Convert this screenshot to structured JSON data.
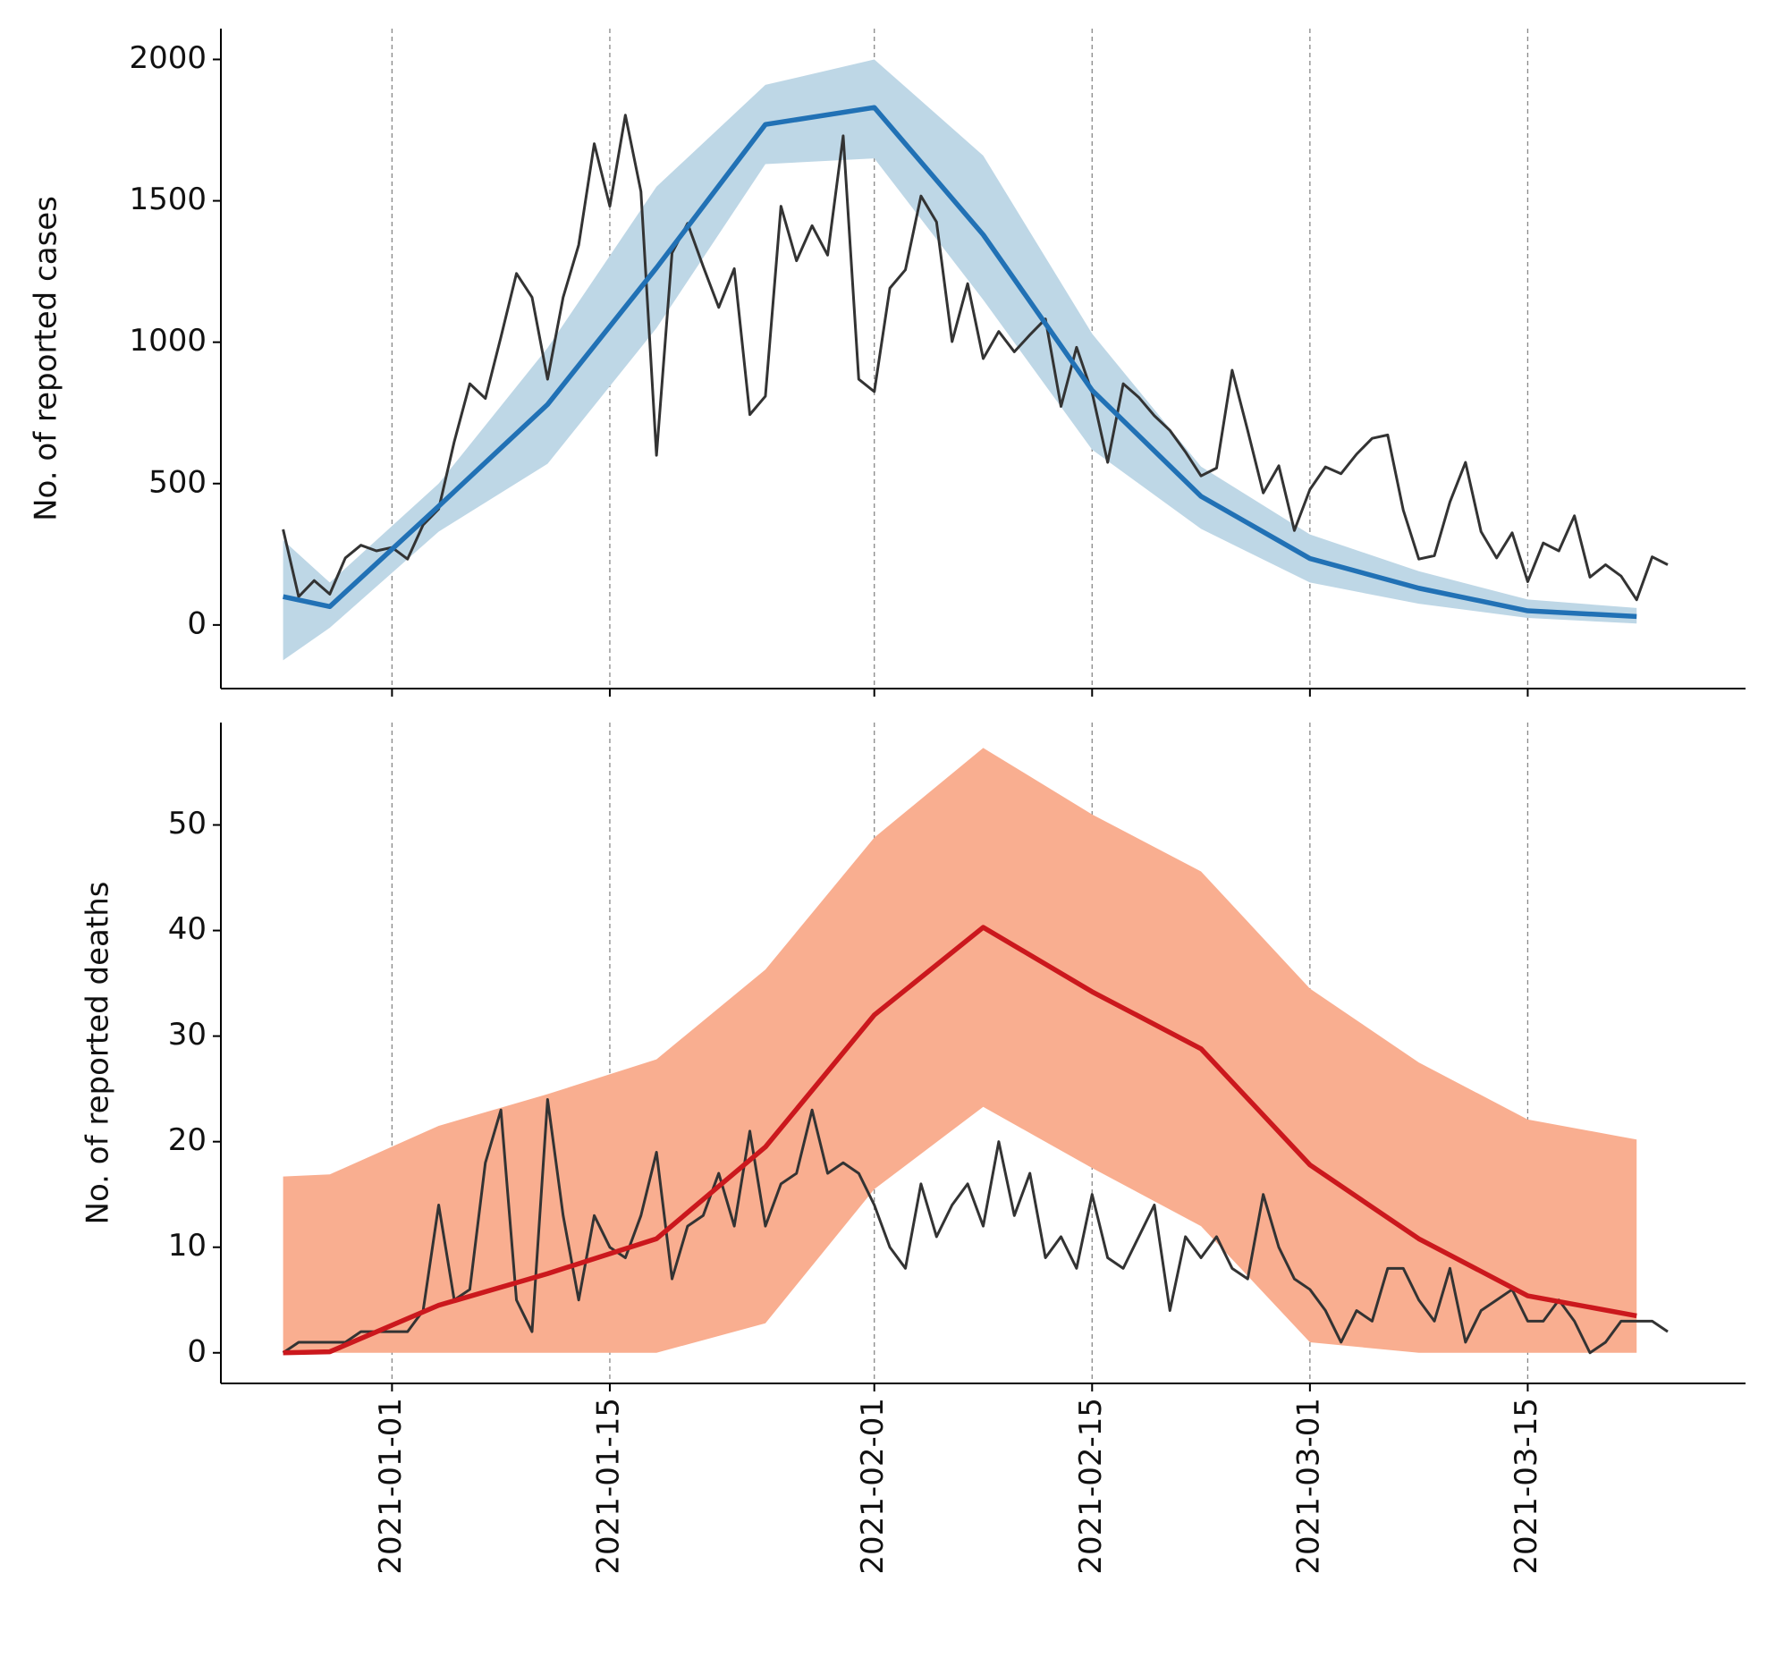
{
  "chart_data": {
    "type": "line",
    "x": [
      "2020-12-25",
      "2020-12-26",
      "2020-12-27",
      "2020-12-28",
      "2020-12-29",
      "2020-12-30",
      "2020-12-31",
      "2021-01-01",
      "2021-01-02",
      "2021-01-03",
      "2021-01-04",
      "2021-01-05",
      "2021-01-06",
      "2021-01-07",
      "2021-01-08",
      "2021-01-09",
      "2021-01-10",
      "2021-01-11",
      "2021-01-12",
      "2021-01-13",
      "2021-01-14",
      "2021-01-15",
      "2021-01-16",
      "2021-01-17",
      "2021-01-18",
      "2021-01-19",
      "2021-01-20",
      "2021-01-21",
      "2021-01-22",
      "2021-01-23",
      "2021-01-24",
      "2021-01-25",
      "2021-01-26",
      "2021-01-27",
      "2021-01-28",
      "2021-01-29",
      "2021-01-30",
      "2021-01-31",
      "2021-02-01",
      "2021-02-02",
      "2021-02-03",
      "2021-02-04",
      "2021-02-05",
      "2021-02-06",
      "2021-02-07",
      "2021-02-08",
      "2021-02-09",
      "2021-02-10",
      "2021-02-11",
      "2021-02-12",
      "2021-02-13",
      "2021-02-14",
      "2021-02-15",
      "2021-02-16",
      "2021-02-17",
      "2021-02-18",
      "2021-02-19",
      "2021-02-20",
      "2021-02-21",
      "2021-02-22",
      "2021-02-23",
      "2021-02-24",
      "2021-02-25",
      "2021-02-26",
      "2021-02-27",
      "2021-02-28",
      "2021-03-01",
      "2021-03-02",
      "2021-03-03",
      "2021-03-04",
      "2021-03-05",
      "2021-03-06",
      "2021-03-07",
      "2021-03-08",
      "2021-03-09",
      "2021-03-10",
      "2021-03-11",
      "2021-03-12",
      "2021-03-13",
      "2021-03-14",
      "2021-03-15",
      "2021-03-16",
      "2021-03-17",
      "2021-03-18",
      "2021-03-19",
      "2021-03-20",
      "2021-03-21",
      "2021-03-22",
      "2021-03-23",
      "2021-03-24"
    ],
    "model_x": [
      "2020-12-25",
      "2020-12-28",
      "2021-01-04",
      "2021-01-11",
      "2021-01-18",
      "2021-01-25",
      "2021-02-01",
      "2021-02-08",
      "2021-02-15",
      "2021-02-22",
      "2021-03-01",
      "2021-03-08",
      "2021-03-15",
      "2021-03-22"
    ],
    "xlim": [
      "2020-12-21",
      "2021-03-29"
    ],
    "xticks": [
      "2021-01-01",
      "2021-01-15",
      "2021-02-01",
      "2021-02-15",
      "2021-03-01",
      "2021-03-15"
    ],
    "grid": true,
    "panels": [
      {
        "ylabel": "No. of reported cases",
        "ylim": [
          -225,
          2109
        ],
        "yticks": [
          0,
          500,
          1000,
          1500,
          2000
        ],
        "color": "#333333",
        "values": [
          338,
          100,
          157,
          109,
          237,
          282,
          262,
          274,
          233,
          354,
          410,
          648,
          853,
          801,
          1018,
          1243,
          1159,
          869,
          1159,
          1344,
          1702,
          1481,
          1803,
          1533,
          600,
          1316,
          1420,
          1268,
          1123,
          1260,
          744,
          809,
          1481,
          1288,
          1412,
          1308,
          1730,
          869,
          825,
          1191,
          1256,
          1517,
          1425,
          1002,
          1207,
          942,
          1038,
          966,
          1026,
          1082,
          773,
          982,
          821,
          575,
          853,
          805,
          740,
          688,
          612,
          527,
          555,
          901,
          688,
          467,
          563,
          334,
          479,
          559,
          535,
          604,
          660,
          672,
          406,
          233,
          245,
          435,
          575,
          330,
          237,
          326,
          153,
          290,
          262,
          386,
          169,
          213,
          173,
          89,
          241,
          213
        ],
        "model": {
          "color": "#2171b5",
          "band_color": "#bed7e6",
          "values": [
            100,
            65,
            420,
            780,
            1263,
            1770,
            1830,
            1380,
            830,
            455,
            235,
            130,
            50,
            30
          ],
          "lower": [
            -125,
            -10,
            330,
            570,
            1050,
            1630,
            1650,
            1150,
            620,
            340,
            150,
            75,
            25,
            5
          ],
          "upper": [
            300,
            150,
            500,
            980,
            1550,
            1910,
            2000,
            1660,
            1030,
            560,
            320,
            190,
            90,
            60
          ]
        }
      },
      {
        "ylabel": "No. of reported deaths",
        "ylim": [
          -2.9,
          59.7
        ],
        "yticks": [
          0,
          10,
          20,
          30,
          40,
          50
        ],
        "color": "#333333",
        "values": [
          0,
          1,
          1,
          1,
          1,
          2,
          2,
          2,
          2,
          4,
          14,
          5,
          6,
          18,
          23,
          5,
          2,
          24,
          13,
          5,
          13,
          10,
          9,
          13,
          19,
          7,
          12,
          13,
          17,
          12,
          21,
          12,
          16,
          17,
          23,
          17,
          18,
          17,
          14,
          10,
          8,
          16,
          11,
          14,
          16,
          12,
          20,
          13,
          17,
          9,
          11,
          8,
          15,
          9,
          8,
          11,
          14,
          4,
          11,
          9,
          11,
          8,
          7,
          15,
          10,
          7,
          6,
          4,
          1,
          4,
          3,
          8,
          8,
          5,
          3,
          8,
          1,
          4,
          5,
          6,
          3,
          3,
          5,
          3,
          0,
          1,
          3,
          3,
          3,
          2
        ],
        "model": {
          "color": "#cb181d",
          "band_color": "#f9ae90",
          "values": [
            0,
            0.1,
            4.5,
            7.5,
            10.8,
            19.5,
            32,
            40.3,
            34.2,
            28.8,
            17.8,
            10.8,
            5.4,
            3.5
          ],
          "lower": [
            0,
            0,
            0,
            0,
            0,
            2.8,
            15.5,
            23.3,
            17.5,
            12,
            1,
            0,
            0,
            0
          ],
          "upper": [
            16.7,
            16.9,
            21.5,
            24.5,
            27.8,
            36.3,
            48.8,
            57.3,
            51,
            45.6,
            34.5,
            27.5,
            22.1,
            20.2
          ]
        }
      }
    ]
  }
}
